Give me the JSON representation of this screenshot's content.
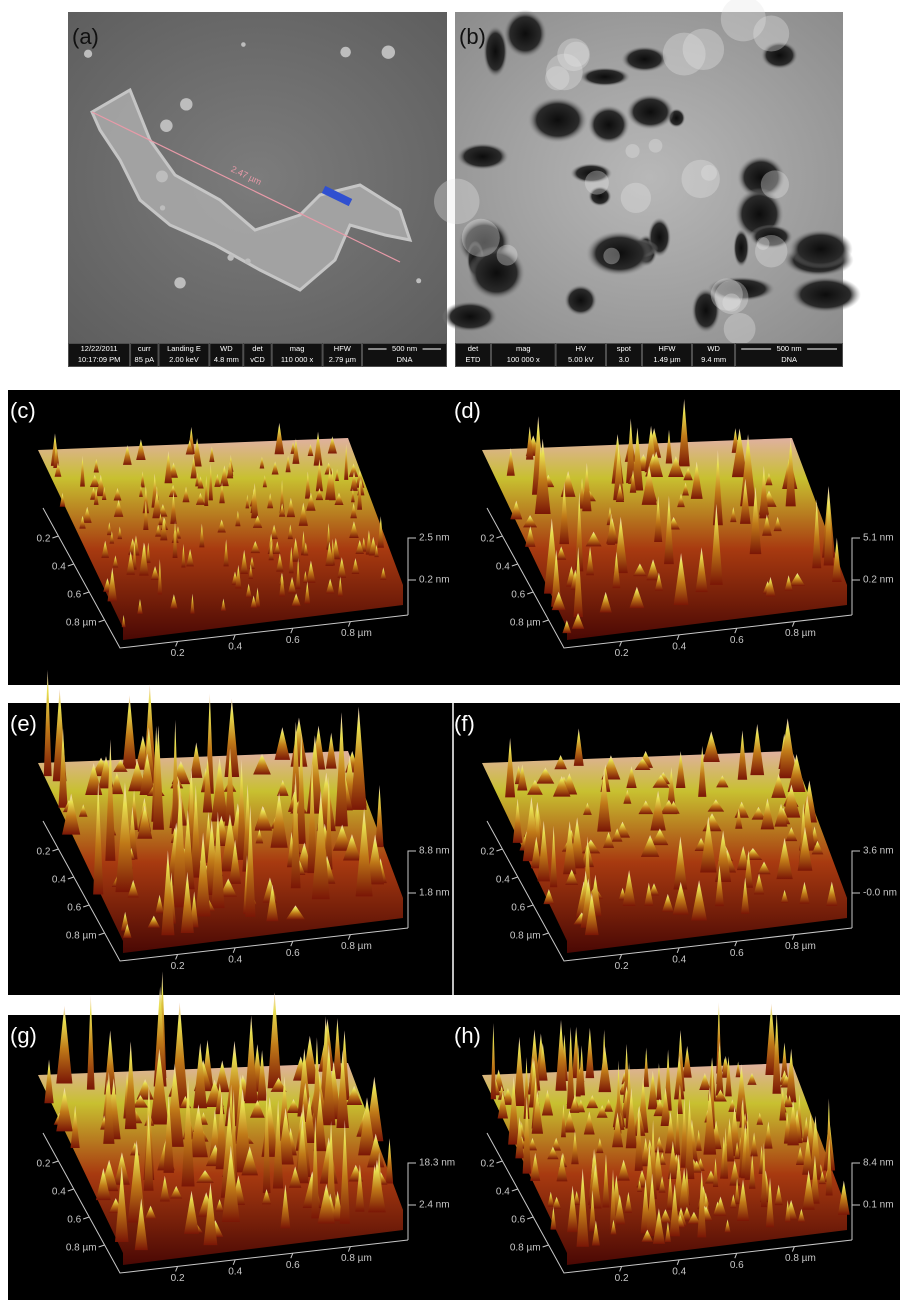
{
  "sem_panels": [
    {
      "label": "(a)",
      "annotations": [
        "2.47 µm"
      ],
      "info_bar": {
        "headers": [
          "12/22/2011",
          "curr",
          "Landing E",
          "WD",
          "det",
          "mag",
          "HFW",
          "500 nm"
        ],
        "values": [
          "10:17:09 PM",
          "85 pA",
          "2.00 keV",
          "4.8 mm",
          "vCD",
          "110 000 x",
          "2.79 µm",
          "DNA"
        ]
      }
    },
    {
      "label": "(b)",
      "info_bar": {
        "headers": [
          "det",
          "mag",
          "HV",
          "spot",
          "HFW",
          "WD",
          "500 nm"
        ],
        "values": [
          "ETD",
          "100 000 x",
          "5.00 kV",
          "3.0",
          "1.49 µm",
          "9.4 mm",
          "DNA"
        ]
      }
    }
  ],
  "afm_panels": [
    {
      "label": "(c)",
      "z_labels": [
        "2.5 nm",
        "0.2 nm"
      ],
      "y_labels": [
        "0.2",
        "0.4",
        "0.6",
        "0.8 µm"
      ],
      "x_labels": [
        "0.2",
        "0.4",
        "0.6",
        "0.8 µm"
      ]
    },
    {
      "label": "(d)",
      "z_labels": [
        "5.1 nm",
        "0.2 nm"
      ],
      "y_labels": [
        "0.2",
        "0.4",
        "0.6",
        "0.8 µm"
      ],
      "x_labels": [
        "0.2",
        "0.4",
        "0.6",
        "0.8 µm"
      ]
    },
    {
      "label": "(e)",
      "z_labels": [
        "8.8 nm",
        "1.8 nm"
      ],
      "y_labels": [
        "0.2",
        "0.4",
        "0.6",
        "0.8 µm"
      ],
      "x_labels": [
        "0.2",
        "0.4",
        "0.6",
        "0.8 µm"
      ]
    },
    {
      "label": "(f)",
      "z_labels": [
        "3.6 nm",
        "-0.0 nm"
      ],
      "y_labels": [
        "0.2",
        "0.4",
        "0.6",
        "0.8 µm"
      ],
      "x_labels": [
        "0.2",
        "0.4",
        "0.6",
        "0.8 µm"
      ]
    },
    {
      "label": "(g)",
      "z_labels": [
        "18.3 nm",
        "2.4 nm"
      ],
      "y_labels": [
        "0.2",
        "0.4",
        "0.6",
        "0.8 µm"
      ],
      "x_labels": [
        "0.2",
        "0.4",
        "0.6",
        "0.8 µm"
      ]
    },
    {
      "label": "(h)",
      "z_labels": [
        "8.4 nm",
        "0.1 nm"
      ],
      "y_labels": [
        "0.2",
        "0.4",
        "0.6",
        "0.8 µm"
      ],
      "x_labels": [
        "0.2",
        "0.4",
        "0.6",
        "0.8 µm"
      ]
    }
  ]
}
